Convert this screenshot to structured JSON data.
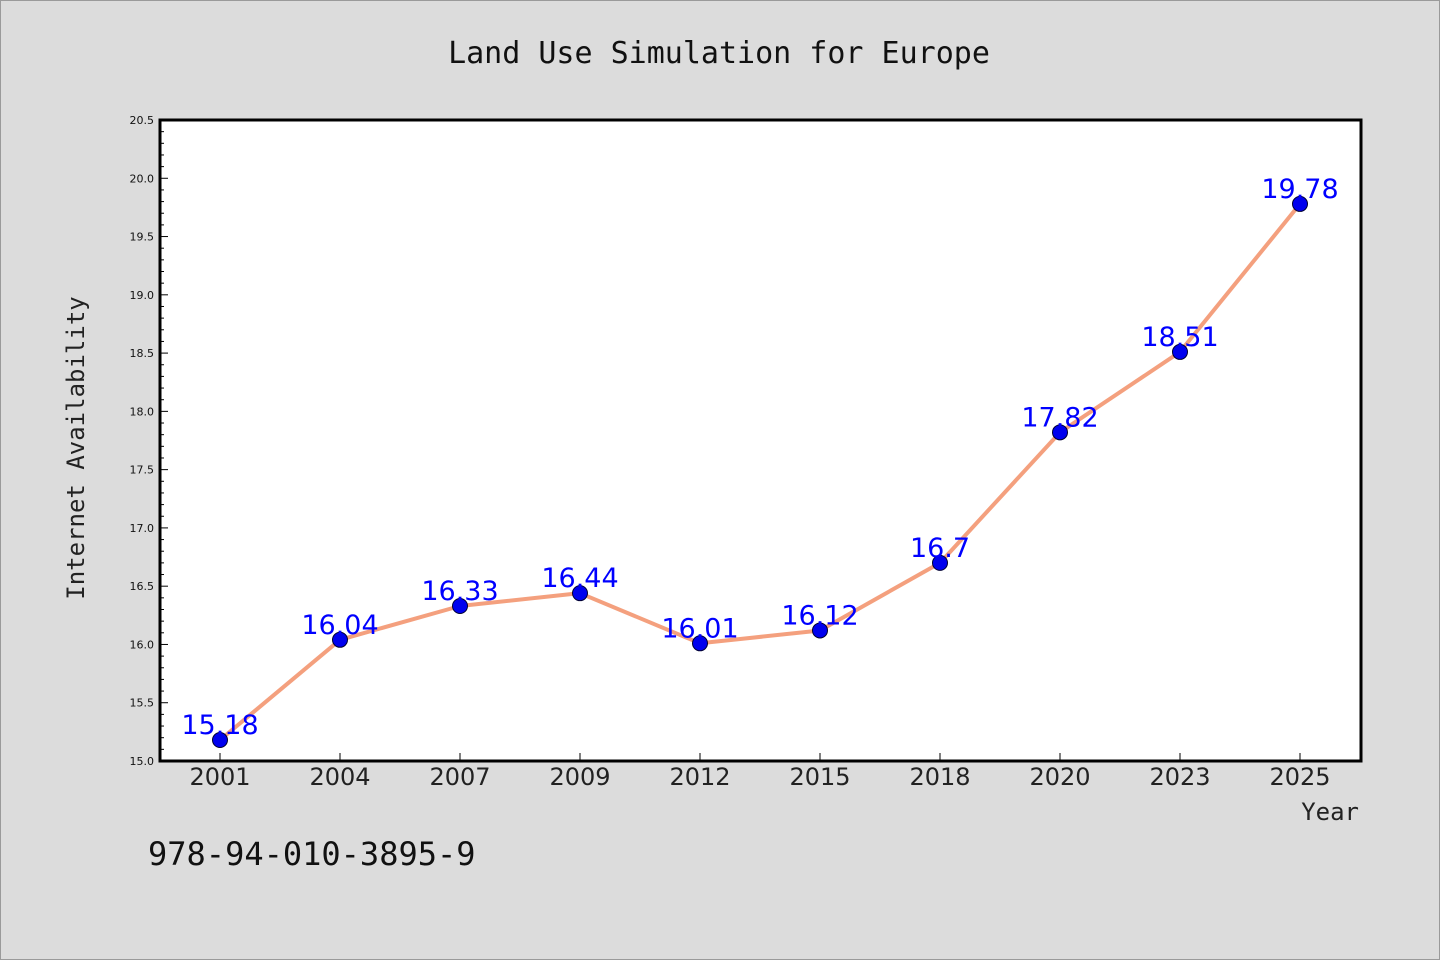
{
  "chart_data": {
    "type": "line",
    "title": "Land Use Simulation for Europe",
    "xlabel": "Year",
    "ylabel": "Internet Availability",
    "categories": [
      "2001",
      "2004",
      "2007",
      "2009",
      "2012",
      "2015",
      "2018",
      "2020",
      "2023",
      "2025"
    ],
    "series": [
      {
        "values": [
          15.18,
          16.04,
          16.33,
          16.44,
          16.01,
          16.12,
          16.7,
          17.82,
          18.51,
          19.78
        ],
        "line_color": "#f4a07e",
        "marker_color": "#0000ee"
      }
    ],
    "data_labels": [
      "15.18",
      "16.04",
      "16.33",
      "16.44",
      "16.01",
      "16.12",
      "16.7",
      "17.82",
      "18.51",
      "19.78"
    ],
    "ylim": [
      15.0,
      20.5
    ],
    "yticks": [
      "15.0",
      "15.5",
      "16.0",
      "16.5",
      "17.0",
      "17.5",
      "18.0",
      "18.5",
      "19.0",
      "19.5",
      "20.0",
      "20.5"
    ],
    "grid": false,
    "legend": "none"
  },
  "footer": {
    "text": "978-94-010-3895-9"
  }
}
